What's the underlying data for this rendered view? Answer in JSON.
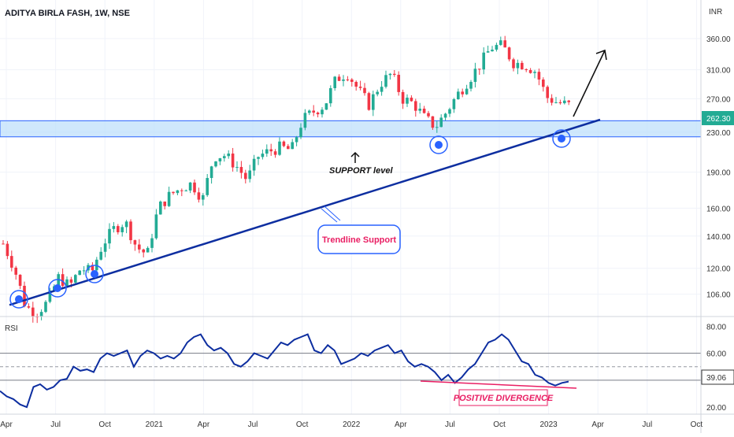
{
  "header": {
    "title": "ADITYA BIRLA FASH, 1W, NSE",
    "currency": "INR"
  },
  "colors": {
    "up": "#22ab94",
    "down": "#f23645",
    "trendline": "#0d2ea0",
    "support_zone": "#bbdefb",
    "rsi_line": "#0d2ea0",
    "divergence": "#e91e63",
    "marker": "#2962ff",
    "price_label_bg": "#22ab94"
  },
  "chart_data": [
    {
      "type": "candlestick",
      "name": "price",
      "ylim": [
        96,
        420
      ],
      "scale": "log",
      "y_ticks": [
        "106.00",
        "120.00",
        "140.00",
        "160.00",
        "190.00",
        "230.00",
        "270.00",
        "310.00",
        "360.00"
      ],
      "last_price": "262.30",
      "x_labels": [
        "Apr",
        "Jul",
        "Oct",
        "2021",
        "Apr",
        "Jul",
        "Oct",
        "2022",
        "Apr",
        "Jul",
        "Oct",
        "2023",
        "Apr",
        "Jul",
        "Oct"
      ],
      "close_path": [
        135,
        120,
        100,
        97,
        102,
        115,
        110,
        120,
        118,
        135,
        145,
        150,
        133,
        128,
        160,
        170,
        176,
        180,
        167,
        205,
        206,
        196,
        183,
        205,
        210,
        214,
        211,
        244,
        254,
        262,
        296,
        306,
        282,
        262,
        290,
        304,
        270,
        264,
        246,
        236,
        254,
        276,
        296,
        318,
        345,
        348,
        321,
        318,
        308,
        272,
        265,
        262
      ],
      "support_zone": [
        225,
        243
      ],
      "trendline": [
        [
          0,
          103
        ],
        [
          33.5,
          220
        ],
        [
          47.5,
          290
        ]
      ],
      "markers": [
        {
          "index": 0,
          "value": 101
        },
        {
          "index": 3,
          "value": 112
        },
        {
          "index": 6,
          "value": 121
        },
        {
          "index": 35,
          "value": 233
        },
        {
          "index": 45,
          "value": 239
        }
      ],
      "annotations": {
        "support_label": "SUPPORT level",
        "trendline_label": "Trendline Support"
      }
    },
    {
      "type": "line",
      "name": "RSI",
      "ylim": [
        16,
        86
      ],
      "y_ticks": [
        "20.00",
        "40.00",
        "60.00",
        "80.00"
      ],
      "band_levels": [
        40,
        50,
        60
      ],
      "last_value": "39.06",
      "values": [
        32,
        28,
        26,
        22,
        20,
        35,
        37,
        33,
        35,
        40,
        41,
        50,
        47,
        48,
        46,
        56,
        60,
        58,
        60,
        62,
        50,
        58,
        62,
        60,
        56,
        58,
        56,
        60,
        68,
        72,
        74,
        66,
        62,
        64,
        60,
        52,
        50,
        54,
        60,
        58,
        56,
        62,
        68,
        66,
        70,
        72,
        74,
        62,
        60,
        66,
        62,
        52,
        54,
        56,
        60,
        58,
        62,
        64,
        66,
        60,
        62,
        54,
        50,
        52,
        50,
        46,
        40,
        44,
        38,
        42,
        48,
        52,
        60,
        68,
        70,
        74,
        70,
        62,
        54,
        52,
        44,
        42,
        38,
        36,
        38,
        39
      ],
      "divergence_label": "POSITIVE DIVERGENCE"
    }
  ]
}
